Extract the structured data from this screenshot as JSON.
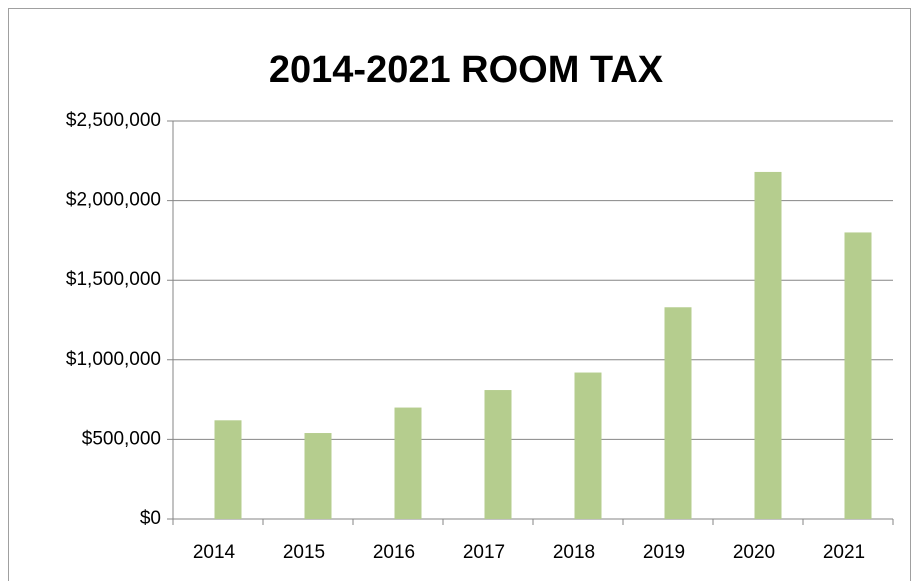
{
  "chart_data": {
    "type": "bar",
    "title": "2014-2021 ROOM TAX",
    "categories": [
      "2014",
      "2015",
      "2016",
      "2017",
      "2018",
      "2019",
      "2020",
      "2021"
    ],
    "values": [
      620000,
      540000,
      700000,
      810000,
      920000,
      1330000,
      2180000,
      1800000
    ],
    "color": "#b5cd8e",
    "ylim": [
      0,
      2500000
    ],
    "yticks": [
      {
        "value": 0,
        "label": "$0"
      },
      {
        "value": 500000,
        "label": "$500,000"
      },
      {
        "value": 1000000,
        "label": "$1,000,000"
      },
      {
        "value": 1500000,
        "label": "$1,500,000"
      },
      {
        "value": 2000000,
        "label": "$2,000,000"
      },
      {
        "value": 2500000,
        "label": "$2,500,000"
      }
    ],
    "grid": true
  }
}
